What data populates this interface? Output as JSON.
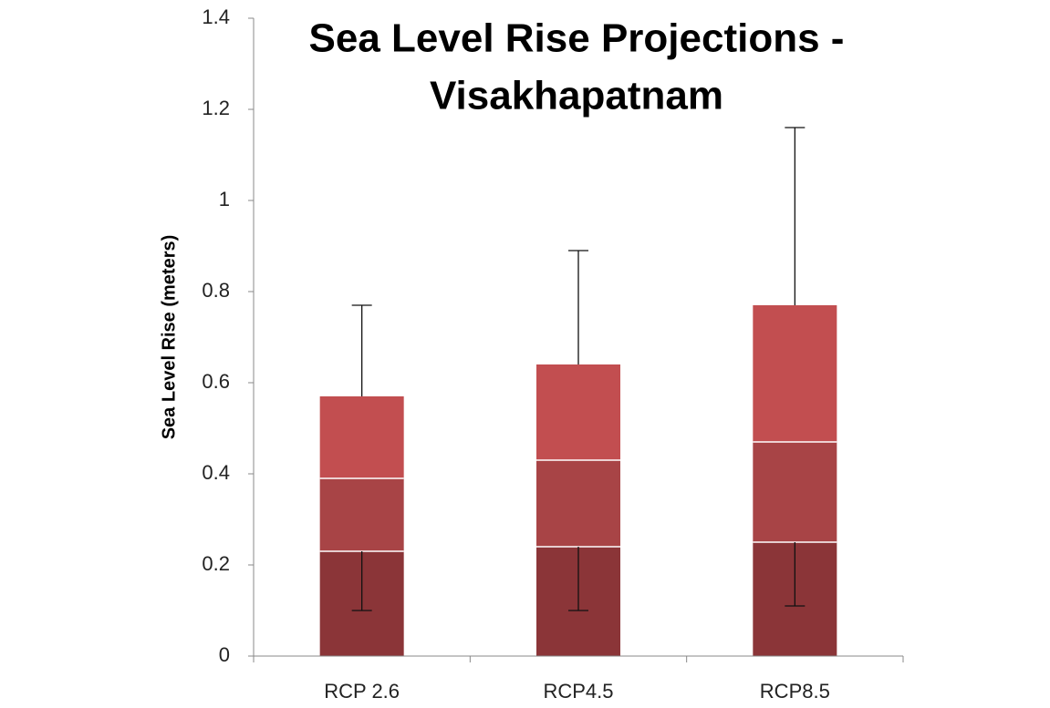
{
  "chart_data": {
    "type": "stacked_bar",
    "title": [
      "Sea Level Rise Projections -",
      "Visakhapatnam"
    ],
    "y_label": "Sea Level Rise (meters)",
    "categories": [
      "RCP 2.6",
      "RCP4.5",
      "RCP8.5"
    ],
    "series": [
      {
        "color": "#8b3538",
        "values": [
          0.23,
          0.24,
          0.25
        ],
        "errors": [
          0.13,
          0.14,
          0.14
        ],
        "error_direction": "minus"
      },
      {
        "color": "#a84446",
        "values": [
          0.16,
          0.19,
          0.22
        ]
      },
      {
        "color": "#c24e50",
        "values": [
          0.18,
          0.21,
          0.3
        ],
        "errors": [
          0.2,
          0.25,
          0.39
        ],
        "error_direction": "plus"
      }
    ],
    "ylim": [
      0,
      1.4
    ],
    "yticks": [
      0,
      0.2,
      0.4,
      0.6,
      0.8,
      1,
      1.2,
      1.4
    ],
    "grid": false
  }
}
